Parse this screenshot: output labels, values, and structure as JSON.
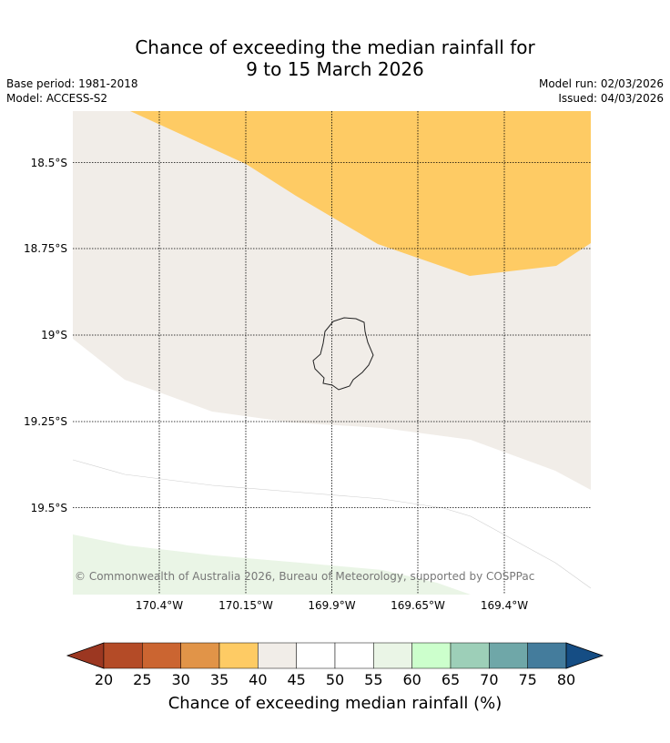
{
  "header": {
    "title_line1": "Chance of exceeding the median rainfall for",
    "title_line2": "9 to 15 March 2026",
    "base_period": "Base period: 1981-2018",
    "model": "Model: ACCESS-S2",
    "model_run": "Model run: 02/03/2026",
    "issued": "Issued: 04/03/2026"
  },
  "map": {
    "lon_labels": [
      "170.4°W",
      "170.15°W",
      "169.9°W",
      "169.65°W",
      "169.4°W"
    ],
    "lat_labels": [
      "18.5°S",
      "18.75°S",
      "19°S",
      "19.25°S",
      "19.5°S"
    ],
    "copyright": "© Commonwealth of Australia 2026, Bureau of Meteorology, supported by COSPPac",
    "colors": {
      "band_35_40": "#fecb64",
      "band_40_45": "#f1ede8",
      "band_45_55": "#ffffff",
      "band_55_60": "#eaf5e6",
      "coast": "#222222"
    }
  },
  "colorbar": {
    "label": "Chance of exceeding median rainfall (%)",
    "ticks": [
      "20",
      "25",
      "30",
      "35",
      "40",
      "45",
      "50",
      "55",
      "60",
      "65",
      "70",
      "75",
      "80"
    ],
    "colors": [
      "#9c3721",
      "#b44b27",
      "#cb6531",
      "#e19448",
      "#fecb64",
      "#f1ede8",
      "#ffffff",
      "#ffffff",
      "#eaf5e6",
      "#ccffcc",
      "#9dcfb8",
      "#6fa7a8",
      "#447c9c",
      "#154d84"
    ]
  }
}
